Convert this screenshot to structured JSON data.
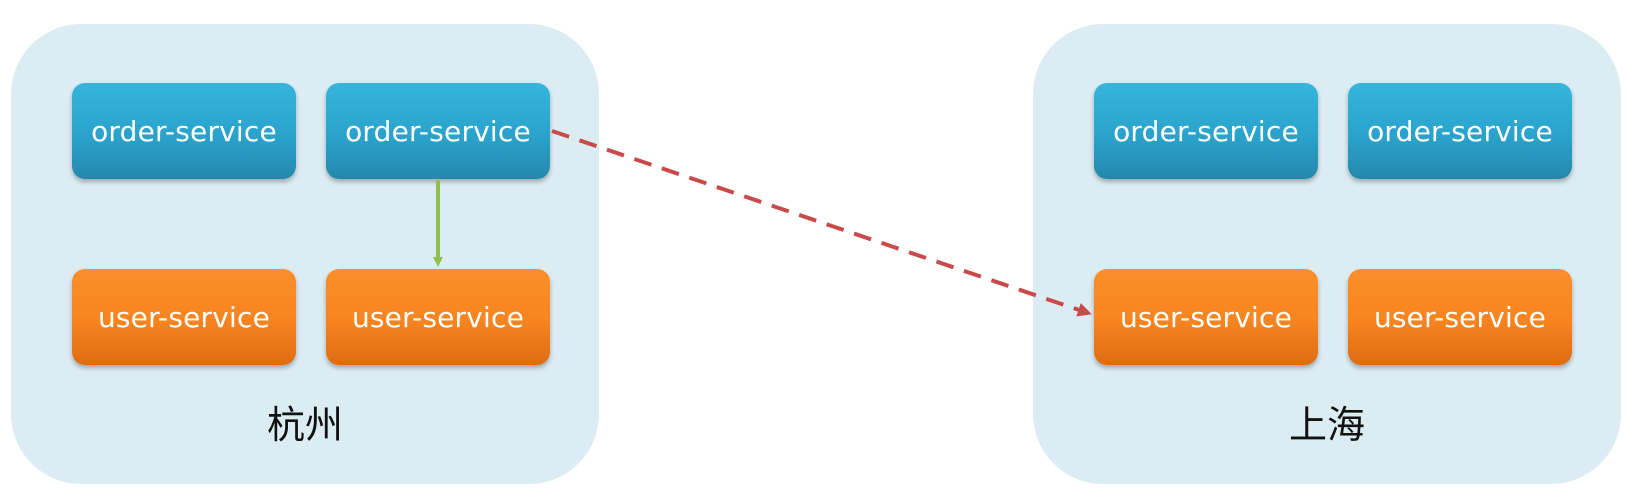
{
  "regions": [
    {
      "label": "杭州",
      "services": {
        "order_1": "order-service",
        "order_2": "order-service",
        "user_1": "user-service",
        "user_2": "user-service"
      }
    },
    {
      "label": "上海",
      "services": {
        "order_1": "order-service",
        "order_2": "order-service",
        "user_1": "user-service",
        "user_2": "user-service"
      }
    }
  ],
  "colors": {
    "region_bg": "#dbecf2",
    "order_service": "#2aa3cc",
    "user_service": "#f7841f",
    "local_call_arrow": "#8fbf4f",
    "cross_region_arrow": "#c94a4a"
  },
  "connections": [
    {
      "from": "杭州 order-service",
      "to": "杭州 user-service",
      "style": "solid"
    },
    {
      "from": "杭州 order-service",
      "to": "上海 user-service",
      "style": "dashed"
    }
  ]
}
